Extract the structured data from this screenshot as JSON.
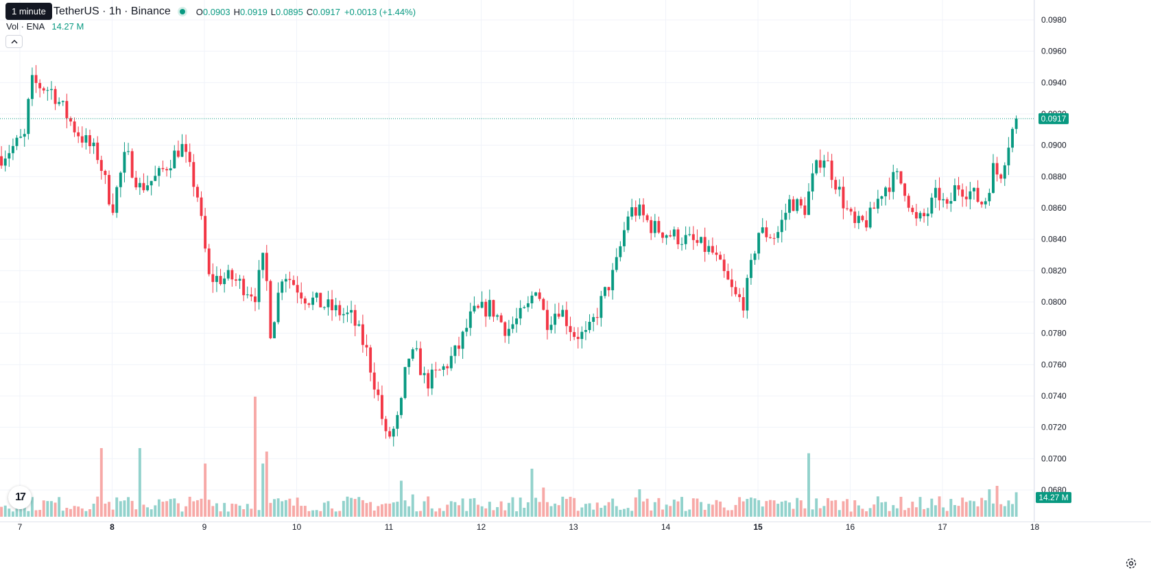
{
  "header": {
    "tooltip": "1 minute",
    "symbol": "TetherUS · 1h · Binance",
    "ohlc": {
      "o_label": "O",
      "o": "0.0903",
      "h_label": "H",
      "h": "0.0919",
      "l_label": "L",
      "l": "0.0895",
      "c_label": "C",
      "c": "0.0917",
      "change": "+0.0013 (+1.44%)"
    },
    "volume_label": "Vol · ENA",
    "volume_value": "14.27 M",
    "logo_text": "17"
  },
  "colors": {
    "up": "#089981",
    "down": "#f23645",
    "up_volume": "#92d2cc",
    "down_volume": "#f7a9a7",
    "grid": "#f0f3fa",
    "text": "#131722"
  },
  "icons": [
    "chevron-up-icon",
    "tradingview-logo-icon",
    "settings-gear-icon"
  ],
  "chart_data": {
    "type": "candlestick",
    "interval": "1h",
    "y_axis": {
      "range": [
        0.0675,
        0.099
      ],
      "ticks": [
        "0.0980",
        "0.0960",
        "0.0940",
        "0.0920",
        "0.0900",
        "0.0880",
        "0.0860",
        "0.0840",
        "0.0820",
        "0.0800",
        "0.0780",
        "0.0760",
        "0.0740",
        "0.0720",
        "0.0700",
        "0.0680"
      ]
    },
    "x_axis": {
      "ticks": [
        {
          "label": "7",
          "day": 7,
          "bold": false
        },
        {
          "label": "8",
          "day": 8,
          "bold": true
        },
        {
          "label": "9",
          "day": 9,
          "bold": false
        },
        {
          "label": "10",
          "day": 10,
          "bold": false
        },
        {
          "label": "11",
          "day": 11,
          "bold": false
        },
        {
          "label": "12",
          "day": 12,
          "bold": false
        },
        {
          "label": "13",
          "day": 13,
          "bold": false
        },
        {
          "label": "14",
          "day": 14,
          "bold": false
        },
        {
          "label": "15",
          "day": 15,
          "bold": true
        },
        {
          "label": "16",
          "day": 16,
          "bold": false
        },
        {
          "label": "17",
          "day": 17,
          "bold": false
        },
        {
          "label": "18",
          "day": 18,
          "bold": false
        }
      ]
    },
    "last_price": "0.0917",
    "last_volume": "14.27 M",
    "volume_max_millions": 80,
    "grid": true,
    "key_prices": [
      {
        "day": 6.8,
        "price": 0.0893
      },
      {
        "day": 7.05,
        "price": 0.0905
      },
      {
        "day": 7.12,
        "price": 0.094
      },
      {
        "day": 7.35,
        "price": 0.0935
      },
      {
        "day": 7.6,
        "price": 0.091
      },
      {
        "day": 7.85,
        "price": 0.0893
      },
      {
        "day": 8.0,
        "price": 0.086
      },
      {
        "day": 8.15,
        "price": 0.0895
      },
      {
        "day": 8.3,
        "price": 0.0873
      },
      {
        "day": 8.5,
        "price": 0.088
      },
      {
        "day": 8.75,
        "price": 0.09
      },
      {
        "day": 8.92,
        "price": 0.087
      },
      {
        "day": 9.05,
        "price": 0.0815
      },
      {
        "day": 9.3,
        "price": 0.0815
      },
      {
        "day": 9.55,
        "price": 0.0805
      },
      {
        "day": 9.65,
        "price": 0.083
      },
      {
        "day": 9.72,
        "price": 0.078
      },
      {
        "day": 9.85,
        "price": 0.082
      },
      {
        "day": 10.1,
        "price": 0.0803
      },
      {
        "day": 10.4,
        "price": 0.0795
      },
      {
        "day": 10.6,
        "price": 0.079
      },
      {
        "day": 10.75,
        "price": 0.077
      },
      {
        "day": 10.88,
        "price": 0.074
      },
      {
        "day": 10.97,
        "price": 0.0712
      },
      {
        "day": 11.05,
        "price": 0.0718
      },
      {
        "day": 11.12,
        "price": 0.0728
      },
      {
        "day": 11.2,
        "price": 0.0765
      },
      {
        "day": 11.3,
        "price": 0.0765
      },
      {
        "day": 11.4,
        "price": 0.0748
      },
      {
        "day": 11.6,
        "price": 0.0758
      },
      {
        "day": 11.75,
        "price": 0.077
      },
      {
        "day": 11.9,
        "price": 0.0792
      },
      {
        "day": 12.1,
        "price": 0.0797
      },
      {
        "day": 12.28,
        "price": 0.0782
      },
      {
        "day": 12.5,
        "price": 0.0795
      },
      {
        "day": 12.6,
        "price": 0.0812
      },
      {
        "day": 12.7,
        "price": 0.0787
      },
      {
        "day": 12.85,
        "price": 0.0797
      },
      {
        "day": 13.0,
        "price": 0.078
      },
      {
        "day": 13.15,
        "price": 0.0778
      },
      {
        "day": 13.3,
        "price": 0.08
      },
      {
        "day": 13.45,
        "price": 0.082
      },
      {
        "day": 13.6,
        "price": 0.0858
      },
      {
        "day": 13.7,
        "price": 0.0858
      },
      {
        "day": 13.85,
        "price": 0.0848
      },
      {
        "day": 14.05,
        "price": 0.0843
      },
      {
        "day": 14.3,
        "price": 0.0838
      },
      {
        "day": 14.5,
        "price": 0.0832
      },
      {
        "day": 14.65,
        "price": 0.0815
      },
      {
        "day": 14.75,
        "price": 0.0803
      },
      {
        "day": 14.85,
        "price": 0.08
      },
      {
        "day": 14.93,
        "price": 0.0823
      },
      {
        "day": 15.0,
        "price": 0.0845
      },
      {
        "day": 15.2,
        "price": 0.0842
      },
      {
        "day": 15.35,
        "price": 0.0865
      },
      {
        "day": 15.5,
        "price": 0.0858
      },
      {
        "day": 15.6,
        "price": 0.088
      },
      {
        "day": 15.7,
        "price": 0.0895
      },
      {
        "day": 15.82,
        "price": 0.088
      },
      {
        "day": 15.95,
        "price": 0.086
      },
      {
        "day": 16.05,
        "price": 0.0848
      },
      {
        "day": 16.2,
        "price": 0.0852
      },
      {
        "day": 16.35,
        "price": 0.0872
      },
      {
        "day": 16.5,
        "price": 0.088
      },
      {
        "day": 16.6,
        "price": 0.0872
      },
      {
        "day": 16.7,
        "price": 0.085
      },
      {
        "day": 16.82,
        "price": 0.0855
      },
      {
        "day": 16.95,
        "price": 0.087
      },
      {
        "day": 17.05,
        "price": 0.0858
      },
      {
        "day": 17.15,
        "price": 0.0875
      },
      {
        "day": 17.3,
        "price": 0.087
      },
      {
        "day": 17.45,
        "price": 0.0862
      },
      {
        "day": 17.55,
        "price": 0.0885
      },
      {
        "day": 17.62,
        "price": 0.088
      },
      {
        "day": 17.72,
        "price": 0.0903
      },
      {
        "day": 17.8,
        "price": 0.0917
      }
    ],
    "volume_spikes_millions": [
      {
        "day": 7.9,
        "volume": 40
      },
      {
        "day": 8.3,
        "volume": 40
      },
      {
        "day": 8.99,
        "volume": 31
      },
      {
        "day": 9.55,
        "volume": 70
      },
      {
        "day": 9.63,
        "volume": 31
      },
      {
        "day": 9.67,
        "volume": 38
      },
      {
        "day": 11.15,
        "volume": 21
      },
      {
        "day": 11.25,
        "volume": 13
      },
      {
        "day": 12.55,
        "volume": 28
      },
      {
        "day": 12.68,
        "volume": 17
      },
      {
        "day": 13.7,
        "volume": 16
      },
      {
        "day": 15.55,
        "volume": 37
      },
      {
        "day": 17.5,
        "volume": 16
      },
      {
        "day": 17.6,
        "volume": 18
      }
    ]
  }
}
